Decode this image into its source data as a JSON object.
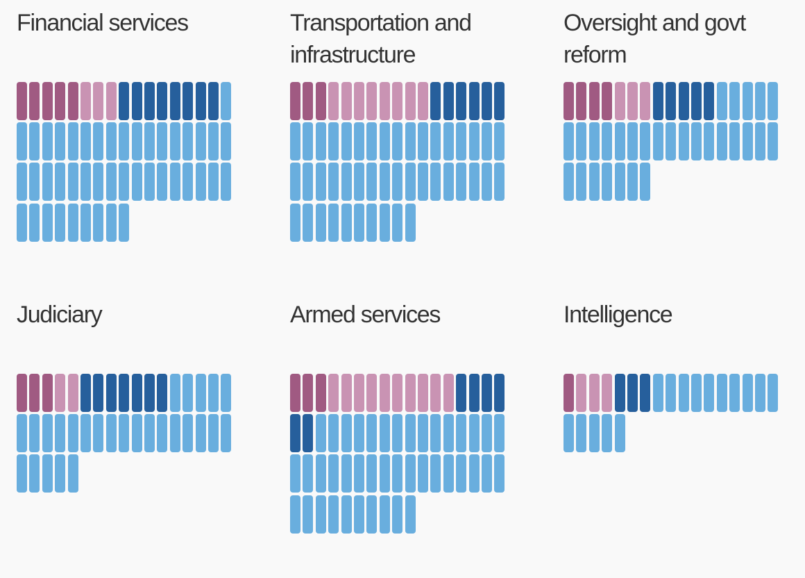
{
  "chart_data": {
    "type": "waffle",
    "columns": 17,
    "colors": [
      "#a05a82",
      "#c993b3",
      "#265f9c",
      "#69aede"
    ],
    "charts": [
      {
        "title": "Financial services",
        "counts": [
          5,
          3,
          8,
          44
        ]
      },
      {
        "title": "Transportation and infrastructure",
        "counts": [
          3,
          8,
          6,
          44
        ]
      },
      {
        "title": "Oversight and govt reform",
        "counts": [
          4,
          3,
          5,
          29
        ]
      },
      {
        "title": "Judiciary",
        "counts": [
          3,
          2,
          7,
          27
        ]
      },
      {
        "title": "Armed services",
        "counts": [
          3,
          10,
          6,
          42
        ]
      },
      {
        "title": "Intelligence",
        "counts": [
          1,
          3,
          3,
          15
        ]
      }
    ]
  }
}
